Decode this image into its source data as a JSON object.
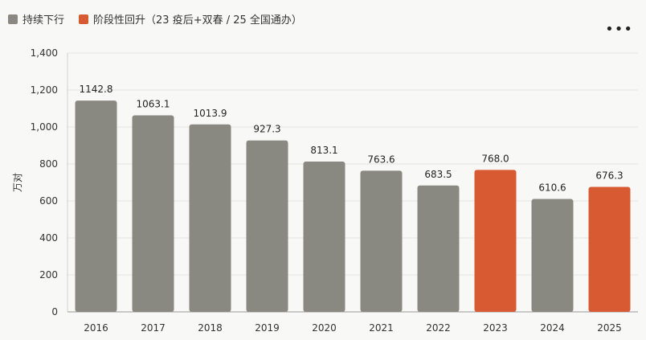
{
  "legend": {
    "items": [
      {
        "label": "持续下行",
        "color": "#8a8981"
      },
      {
        "label": "阶段性回升（23 疫后+双春 / 25 全国通办）",
        "color": "#d85a33"
      }
    ]
  },
  "menu_icon": "more-horizontal-icon",
  "chart_data": {
    "type": "bar",
    "categories": [
      "2016",
      "2017",
      "2018",
      "2019",
      "2020",
      "2021",
      "2022",
      "2023",
      "2024",
      "2025"
    ],
    "values": [
      1142.8,
      1063.1,
      1013.9,
      927.3,
      813.1,
      763.6,
      683.5,
      768.0,
      610.6,
      676.3
    ],
    "value_labels": [
      "1142.8",
      "1063.1",
      "1013.9",
      "927.3",
      "813.1",
      "763.6",
      "683.5",
      "768.0",
      "610.6",
      "676.3"
    ],
    "series_group": [
      0,
      0,
      0,
      0,
      0,
      0,
      0,
      1,
      0,
      1
    ],
    "colors": [
      "#8a8981",
      "#d85a33"
    ],
    "ylabel": "万对",
    "ylim": [
      0,
      1400
    ],
    "yticks": [
      0,
      200,
      400,
      600,
      800,
      1000,
      1200,
      1400
    ],
    "ytick_labels": [
      "0",
      "200",
      "400",
      "600",
      "800",
      "1,000",
      "1,200",
      "1,400"
    ],
    "grid": true,
    "legend_position": "top-left"
  }
}
